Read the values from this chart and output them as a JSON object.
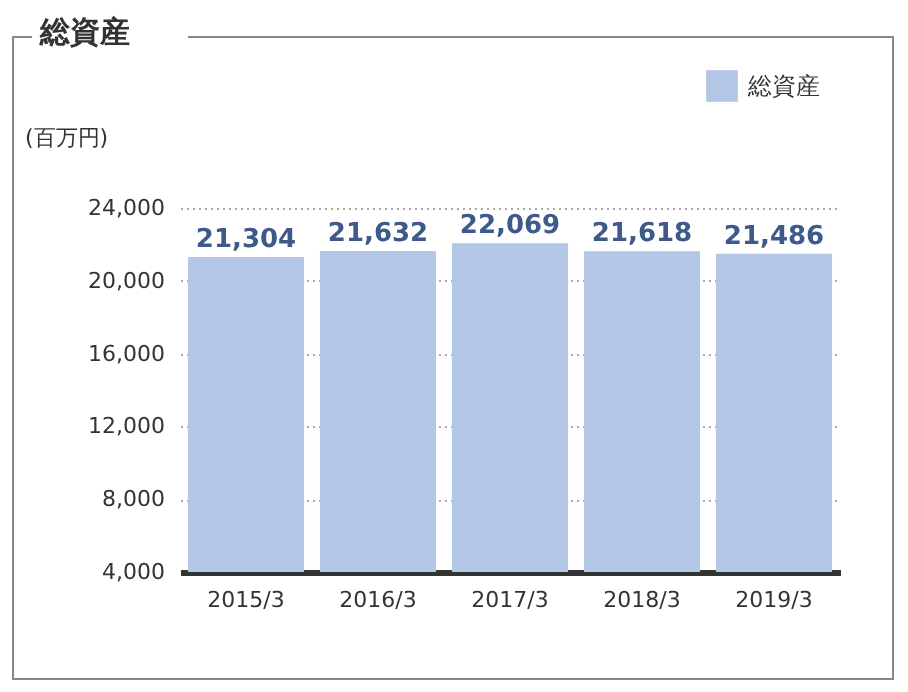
{
  "chart_data": {
    "type": "bar",
    "title": "総資産",
    "ylabel": "(百万円)",
    "categories": [
      "2015/3",
      "2016/3",
      "2017/3",
      "2018/3",
      "2019/3"
    ],
    "series": [
      {
        "name": "総資産",
        "color": "#b4c6e6",
        "values": [
          21304,
          21632,
          22069,
          21618,
          21486
        ],
        "value_labels": [
          "21,304",
          "21,632",
          "22,069",
          "21,618",
          "21,486"
        ]
      }
    ],
    "ylim": [
      4000,
      24000
    ],
    "yticks": [
      {
        "value": 4000,
        "label": "4,000"
      },
      {
        "value": 8000,
        "label": "8,000"
      },
      {
        "value": 12000,
        "label": "12,000"
      },
      {
        "value": 16000,
        "label": "16,000"
      },
      {
        "value": 20000,
        "label": "20,000"
      },
      {
        "value": 24000,
        "label": "24,000"
      }
    ],
    "grid": "y",
    "legend": "top right"
  }
}
